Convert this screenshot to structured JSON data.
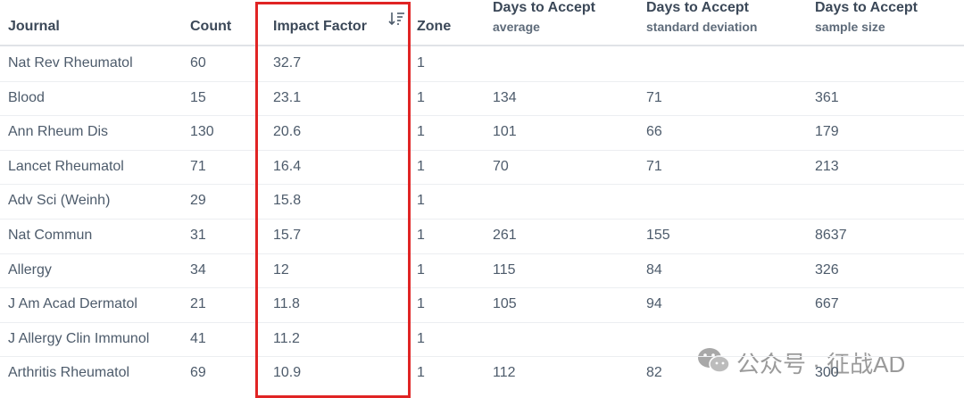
{
  "table": {
    "columns": [
      {
        "title": "Journal"
      },
      {
        "title": "Count"
      },
      {
        "title": "Impact Factor"
      },
      {
        "title": "Zone"
      },
      {
        "title": "Days to Accept",
        "subtitle": "average"
      },
      {
        "title": "Days to Accept",
        "subtitle": "standard deviation"
      },
      {
        "title": "Days to Accept",
        "subtitle": "sample size"
      }
    ],
    "rows": [
      [
        "Nat Rev Rheumatol",
        "60",
        "32.7",
        "1",
        null,
        null,
        null
      ],
      [
        "Blood",
        "15",
        "23.1",
        "1",
        "134",
        "71",
        "361"
      ],
      [
        "Ann Rheum Dis",
        "130",
        "20.6",
        "1",
        "101",
        "66",
        "179"
      ],
      [
        "Lancet Rheumatol",
        "71",
        "16.4",
        "1",
        "70",
        "71",
        "213"
      ],
      [
        "Adv Sci (Weinh)",
        "29",
        "15.8",
        "1",
        null,
        null,
        null
      ],
      [
        "Nat Commun",
        "31",
        "15.7",
        "1",
        "261",
        "155",
        "8637"
      ],
      [
        "Allergy",
        "34",
        "12",
        "1",
        "115",
        "84",
        "326"
      ],
      [
        "J Am Acad Dermatol",
        "21",
        "11.8",
        "1",
        "105",
        "94",
        "667"
      ],
      [
        "J Allergy Clin Immunol",
        "41",
        "11.2",
        "1",
        null,
        null,
        null
      ],
      [
        "Arthritis Rheumatol",
        "69",
        "10.9",
        "1",
        "112",
        "82",
        "300"
      ]
    ]
  },
  "watermark": {
    "text": "公众号 · 征战AD"
  }
}
